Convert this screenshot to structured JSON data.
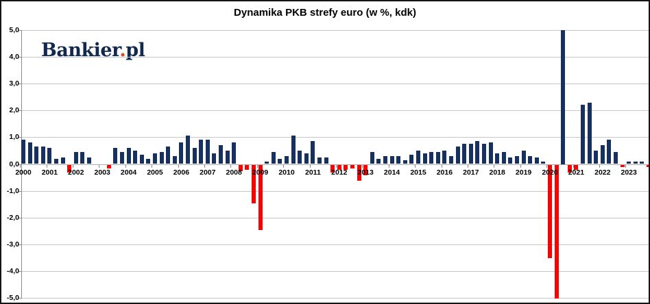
{
  "page": {
    "background": "#ffffff",
    "border_color": "#141414"
  },
  "logo": {
    "text_main": "Bankier",
    "dot": ".",
    "text_suffix": "pl",
    "color": "#12284e",
    "dot_color": "#e8411c"
  },
  "chart_data": {
    "type": "bar",
    "title": "Dynamika PKB strefy euro (w %, kdk)",
    "xlabel": "",
    "ylabel": "",
    "ylim": [
      -5,
      5
    ],
    "grid": "horizontal",
    "legend": "none",
    "ytick_values": [
      5,
      4,
      3,
      2,
      1,
      0,
      -1,
      -2,
      -3,
      -4,
      -5
    ],
    "ytick_labels": [
      "5,0",
      "4,0",
      "3,0",
      "2,0",
      "1,0",
      "0,0",
      "-1,0",
      "-2,0",
      "-3,0",
      "-4,0",
      "-5,0"
    ],
    "year_labels": [
      "2000",
      "2001",
      "2002",
      "2003",
      "2004",
      "2005",
      "2006",
      "2007",
      "2008",
      "2009",
      "2010",
      "2011",
      "2012",
      "2013",
      "2014",
      "2015",
      "2016",
      "2017",
      "2018",
      "2019",
      "2020",
      "2021",
      "2022",
      "2023"
    ],
    "quarters_per_year": 4,
    "values": [
      0.9,
      0.8,
      0.65,
      0.65,
      0.6,
      0.2,
      0.25,
      -0.3,
      0.45,
      0.45,
      0.25,
      0.0,
      0.0,
      -0.15,
      0.6,
      0.45,
      0.6,
      0.5,
      0.35,
      0.2,
      0.4,
      0.45,
      0.65,
      0.3,
      0.8,
      1.05,
      0.6,
      0.9,
      0.9,
      0.4,
      0.7,
      0.5,
      0.8,
      -0.25,
      -0.2,
      -1.45,
      -2.45,
      0.1,
      0.45,
      0.2,
      0.3,
      1.05,
      0.5,
      0.4,
      0.85,
      0.25,
      0.25,
      -0.3,
      -0.2,
      -0.2,
      -0.15,
      -0.6,
      -0.4,
      0.45,
      0.2,
      0.3,
      0.3,
      0.3,
      0.15,
      0.35,
      0.5,
      0.4,
      0.45,
      0.45,
      0.5,
      0.3,
      0.65,
      0.75,
      0.75,
      0.85,
      0.75,
      0.8,
      0.4,
      0.45,
      0.25,
      0.3,
      0.5,
      0.3,
      0.25,
      0.1,
      -3.5,
      -5.0,
      5.0,
      -0.3,
      -0.2,
      2.2,
      2.3,
      0.5,
      0.7,
      0.9,
      0.45,
      -0.1,
      0.1,
      0.1,
      0.1,
      -0.1
    ],
    "positive_color": "#16305F",
    "negative_color": "#FE0000",
    "gridline_color": "#c6c6c6",
    "clipping_note": "2020Q2 bar clipped at -5,0 and 2020Q3 bar clipped at +5,0 (values exceed axis range)"
  }
}
